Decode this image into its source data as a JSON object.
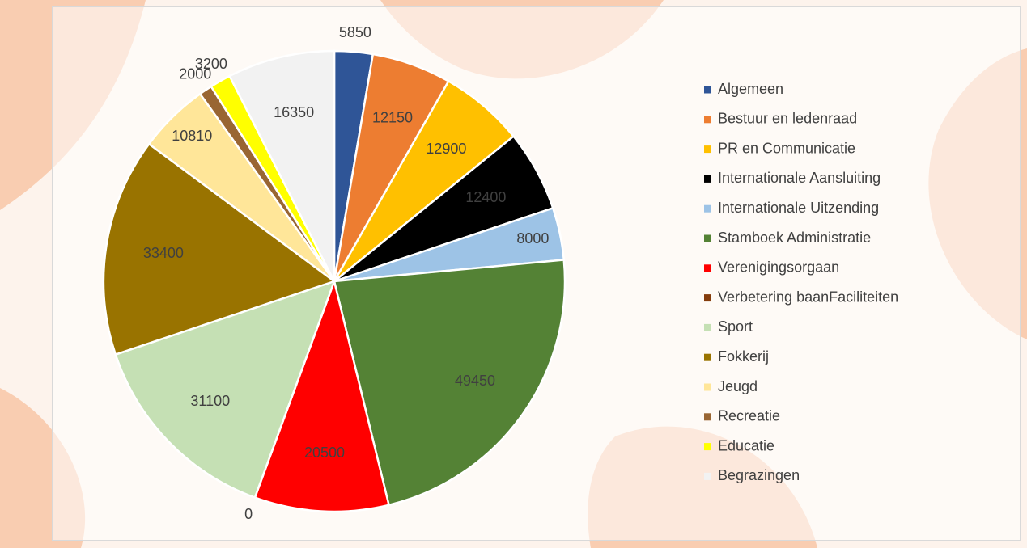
{
  "chart_data": {
    "type": "pie",
    "categories": [
      "Algemeen",
      "Bestuur en ledenraad",
      "PR en Communicatie",
      "Internationale Aansluiting",
      "Internationale Uitzending",
      "Stamboek Administratie",
      "Verenigingsorgaan",
      "Verbetering baanFaciliteiten",
      "Sport",
      "Fokkerij",
      "Jeugd",
      "Recreatie",
      "Educatie",
      "Begrazingen"
    ],
    "values": [
      5850,
      12150,
      12900,
      12400,
      8000,
      49450,
      20500,
      0,
      31100,
      33400,
      10810,
      2000,
      3200,
      16350
    ],
    "colors": [
      "#2f5597",
      "#ed7d31",
      "#ffc000",
      "#000000",
      "#9dc3e6",
      "#548235",
      "#ff0000",
      "#843c0c",
      "#c5e0b4",
      "#997300",
      "#ffe699",
      "#996633",
      "#ffff00",
      "#f2f2f2"
    ],
    "legend": "right"
  }
}
